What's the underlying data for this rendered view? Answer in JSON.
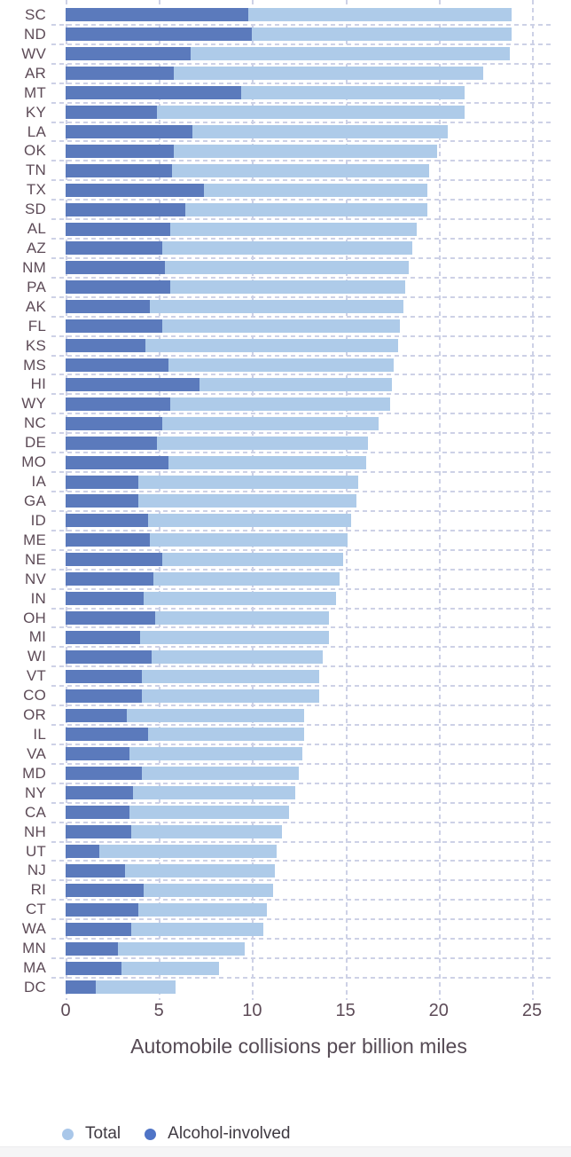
{
  "chart_data": {
    "type": "bar",
    "orientation": "horizontal",
    "title": "",
    "xlabel": "Automobile collisions per billion miles",
    "ylabel": "",
    "x_ticks": [
      0,
      5,
      10,
      15,
      20,
      25
    ],
    "xlim": [
      0,
      26
    ],
    "grid": "dashed",
    "legend_position": "bottom-left",
    "categories": [
      "SC",
      "ND",
      "WV",
      "AR",
      "MT",
      "KY",
      "LA",
      "OK",
      "TN",
      "TX",
      "SD",
      "AL",
      "AZ",
      "NM",
      "PA",
      "AK",
      "FL",
      "KS",
      "MS",
      "HI",
      "WY",
      "NC",
      "DE",
      "MO",
      "IA",
      "GA",
      "ID",
      "ME",
      "NE",
      "NV",
      "IN",
      "OH",
      "MI",
      "WI",
      "VT",
      "CO",
      "OR",
      "IL",
      "VA",
      "MD",
      "NY",
      "CA",
      "NH",
      "UT",
      "NJ",
      "RI",
      "CT",
      "WA",
      "MN",
      "MA",
      "DC"
    ],
    "series": [
      {
        "name": "Total",
        "color": "#aecbe9",
        "values": [
          23.9,
          23.9,
          23.8,
          22.4,
          21.4,
          21.4,
          20.5,
          19.9,
          19.5,
          19.4,
          19.4,
          18.8,
          18.6,
          18.4,
          18.2,
          18.1,
          17.9,
          17.8,
          17.6,
          17.5,
          17.4,
          16.8,
          16.2,
          16.1,
          15.7,
          15.6,
          15.3,
          15.1,
          14.9,
          14.7,
          14.5,
          14.1,
          14.1,
          13.8,
          13.6,
          13.6,
          12.8,
          12.8,
          12.7,
          12.5,
          12.3,
          12.0,
          11.6,
          11.3,
          11.2,
          11.1,
          10.8,
          10.6,
          9.6,
          8.2,
          5.9
        ]
      },
      {
        "name": "Alcohol-involved",
        "color": "#5b7abc",
        "values": [
          9.8,
          10.0,
          6.7,
          5.8,
          9.4,
          4.9,
          6.8,
          5.8,
          5.7,
          7.4,
          6.4,
          5.6,
          5.2,
          5.3,
          5.6,
          4.5,
          5.2,
          4.3,
          5.5,
          7.2,
          5.6,
          5.2,
          4.9,
          5.5,
          3.9,
          3.9,
          4.4,
          4.5,
          5.2,
          4.7,
          4.2,
          4.8,
          4.0,
          4.6,
          4.1,
          4.1,
          3.3,
          4.4,
          3.4,
          4.1,
          3.6,
          3.4,
          3.5,
          1.8,
          3.2,
          4.2,
          3.9,
          3.5,
          2.8,
          3.0,
          1.6
        ]
      }
    ],
    "legend": [
      {
        "label": "Total",
        "color": "#a9c7e9"
      },
      {
        "label": "Alcohol-involved",
        "color": "#4f74c6"
      }
    ],
    "colors": {
      "total_bar": "#aecbe9",
      "alcohol_bar": "#5b7abc",
      "gridline": "#cdd1e6",
      "axis_text": "#5d4b57",
      "title_text": "#554a54",
      "legend_text": "#3f3a42"
    }
  }
}
